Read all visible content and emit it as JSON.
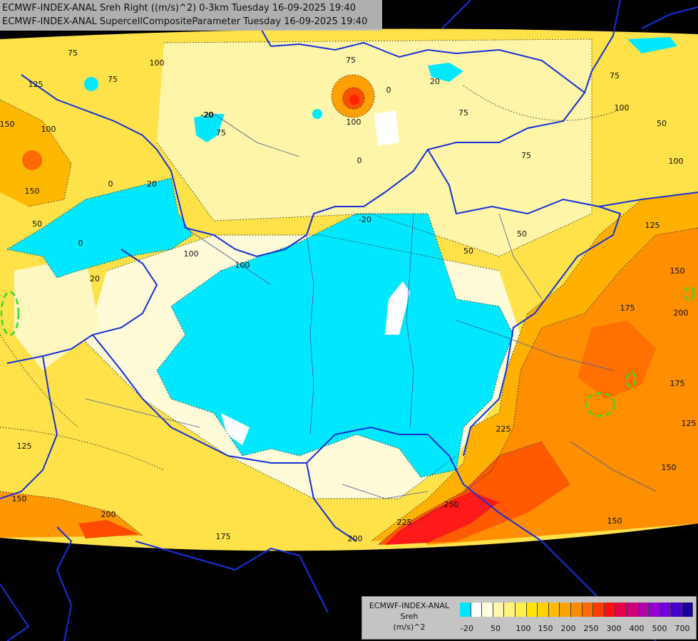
{
  "title": {
    "line1": "ECMWF-INDEX-ANAL Sreh Right ((m/s)^2) 0-3km Tuesday 16-09-2025 19:40",
    "line2": "ECMWF-INDEX-ANAL SupercellCompositeParameter Tuesday 16-09-2025 19:40"
  },
  "legend": {
    "name_line1": "ECMWF-INDEX-ANAL",
    "name_line2": "Sreh",
    "name_line3": "(m/s)^2",
    "colors": [
      "#00e5ff",
      "#ffffff",
      "#fffde0",
      "#fff7b0",
      "#fff27f",
      "#ffef4a",
      "#ffe600",
      "#ffd200",
      "#ffbc00",
      "#ffa300",
      "#ff8a00",
      "#ff6a00",
      "#ff3c00",
      "#ff1010",
      "#e8004a",
      "#d0007a",
      "#b400a8",
      "#9600d2",
      "#6e00e0",
      "#4400c8",
      "#1c009c"
    ],
    "ticks": [
      "-20",
      "50",
      "100",
      "150",
      "200",
      "250",
      "300",
      "400",
      "500",
      "700"
    ]
  },
  "contour_labels": [
    {
      "text": "75"
    },
    {
      "text": "100"
    },
    {
      "text": "75"
    },
    {
      "text": "125"
    },
    {
      "text": "150"
    },
    {
      "text": "100"
    },
    {
      "text": "150"
    },
    {
      "text": "50"
    },
    {
      "text": "0"
    },
    {
      "text": "20"
    },
    {
      "text": "75"
    },
    {
      "text": "100"
    },
    {
      "text": "-20"
    },
    {
      "text": "75"
    },
    {
      "text": "100"
    },
    {
      "text": "20"
    },
    {
      "text": "0"
    },
    {
      "text": "75"
    },
    {
      "text": "100"
    },
    {
      "text": "50"
    },
    {
      "text": "100"
    },
    {
      "text": "75"
    },
    {
      "text": "75"
    },
    {
      "text": "-20"
    },
    {
      "text": "50"
    },
    {
      "text": "50"
    },
    {
      "text": "125"
    },
    {
      "text": "150"
    },
    {
      "text": "175"
    },
    {
      "text": "200"
    },
    {
      "text": "175"
    },
    {
      "text": "125"
    },
    {
      "text": "225"
    },
    {
      "text": "150"
    },
    {
      "text": "150"
    },
    {
      "text": "250"
    },
    {
      "text": "225"
    },
    {
      "text": "200"
    },
    {
      "text": "175"
    },
    {
      "text": "200"
    },
    {
      "text": "150"
    },
    {
      "text": "125"
    },
    {
      "text": "100"
    },
    {
      "text": "20"
    },
    {
      "text": "-20"
    },
    {
      "text": "0"
    },
    {
      "text": "0"
    }
  ]
}
